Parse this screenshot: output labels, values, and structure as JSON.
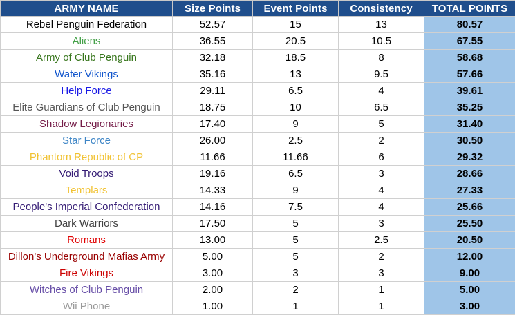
{
  "headers": {
    "name": "ARMY NAME",
    "size": "Size Points",
    "event": "Event Points",
    "consistency": "Consistency",
    "total": "TOTAL POINTS"
  },
  "rows": [
    {
      "name": "Rebel Penguin Federation",
      "size": "52.57",
      "event": "15",
      "consistency": "13",
      "total": "80.57",
      "name_color": "#000000"
    },
    {
      "name": "Aliens",
      "size": "36.55",
      "event": "20.5",
      "consistency": "10.5",
      "total": "67.55",
      "name_color": "#43a047"
    },
    {
      "name": "Army of Club Penguin",
      "size": "32.18",
      "event": "18.5",
      "consistency": "8",
      "total": "58.68",
      "name_color": "#38761d"
    },
    {
      "name": "Water Vikings",
      "size": "35.16",
      "event": "13",
      "consistency": "9.5",
      "total": "57.66",
      "name_color": "#1155cc"
    },
    {
      "name": "Help Force",
      "size": "29.11",
      "event": "6.5",
      "consistency": "4",
      "total": "39.61",
      "name_color": "#1a1ae6"
    },
    {
      "name": "Elite Guardians of Club Penguin",
      "size": "18.75",
      "event": "10",
      "consistency": "6.5",
      "total": "35.25",
      "name_color": "#555555"
    },
    {
      "name": "Shadow Legionaries",
      "size": "17.40",
      "event": "9",
      "consistency": "5",
      "total": "31.40",
      "name_color": "#741b47"
    },
    {
      "name": "Star Force",
      "size": "26.00",
      "event": "2.5",
      "consistency": "2",
      "total": "30.50",
      "name_color": "#3d85c6"
    },
    {
      "name": "Phantom Republic of CP",
      "size": "11.66",
      "event": "11.66",
      "consistency": "6",
      "total": "29.32",
      "name_color": "#f1c232"
    },
    {
      "name": "Void Troops",
      "size": "19.16",
      "event": "6.5",
      "consistency": "3",
      "total": "28.66",
      "name_color": "#351c75"
    },
    {
      "name": "Templars",
      "size": "14.33",
      "event": "9",
      "consistency": "4",
      "total": "27.33",
      "name_color": "#f1c232"
    },
    {
      "name": "People's Imperial Confederation",
      "size": "14.16",
      "event": "7.5",
      "consistency": "4",
      "total": "25.66",
      "name_color": "#351c75"
    },
    {
      "name": "Dark Warriors",
      "size": "17.50",
      "event": "5",
      "consistency": "3",
      "total": "25.50",
      "name_color": "#434343"
    },
    {
      "name": "Romans",
      "size": "13.00",
      "event": "5",
      "consistency": "2.5",
      "total": "20.50",
      "name_color": "#e00000"
    },
    {
      "name": "Dillon's Underground Mafias Army",
      "size": "5.00",
      "event": "5",
      "consistency": "2",
      "total": "12.00",
      "name_color": "#990000"
    },
    {
      "name": "Fire Vikings",
      "size": "3.00",
      "event": "3",
      "consistency": "3",
      "total": "9.00",
      "name_color": "#cc0000"
    },
    {
      "name": "Witches of Club Penguin",
      "size": "2.00",
      "event": "2",
      "consistency": "1",
      "total": "5.00",
      "name_color": "#674ea7"
    },
    {
      "name": "Wii Phone",
      "size": "1.00",
      "event": "1",
      "consistency": "1",
      "total": "3.00",
      "name_color": "#999999"
    }
  ]
}
